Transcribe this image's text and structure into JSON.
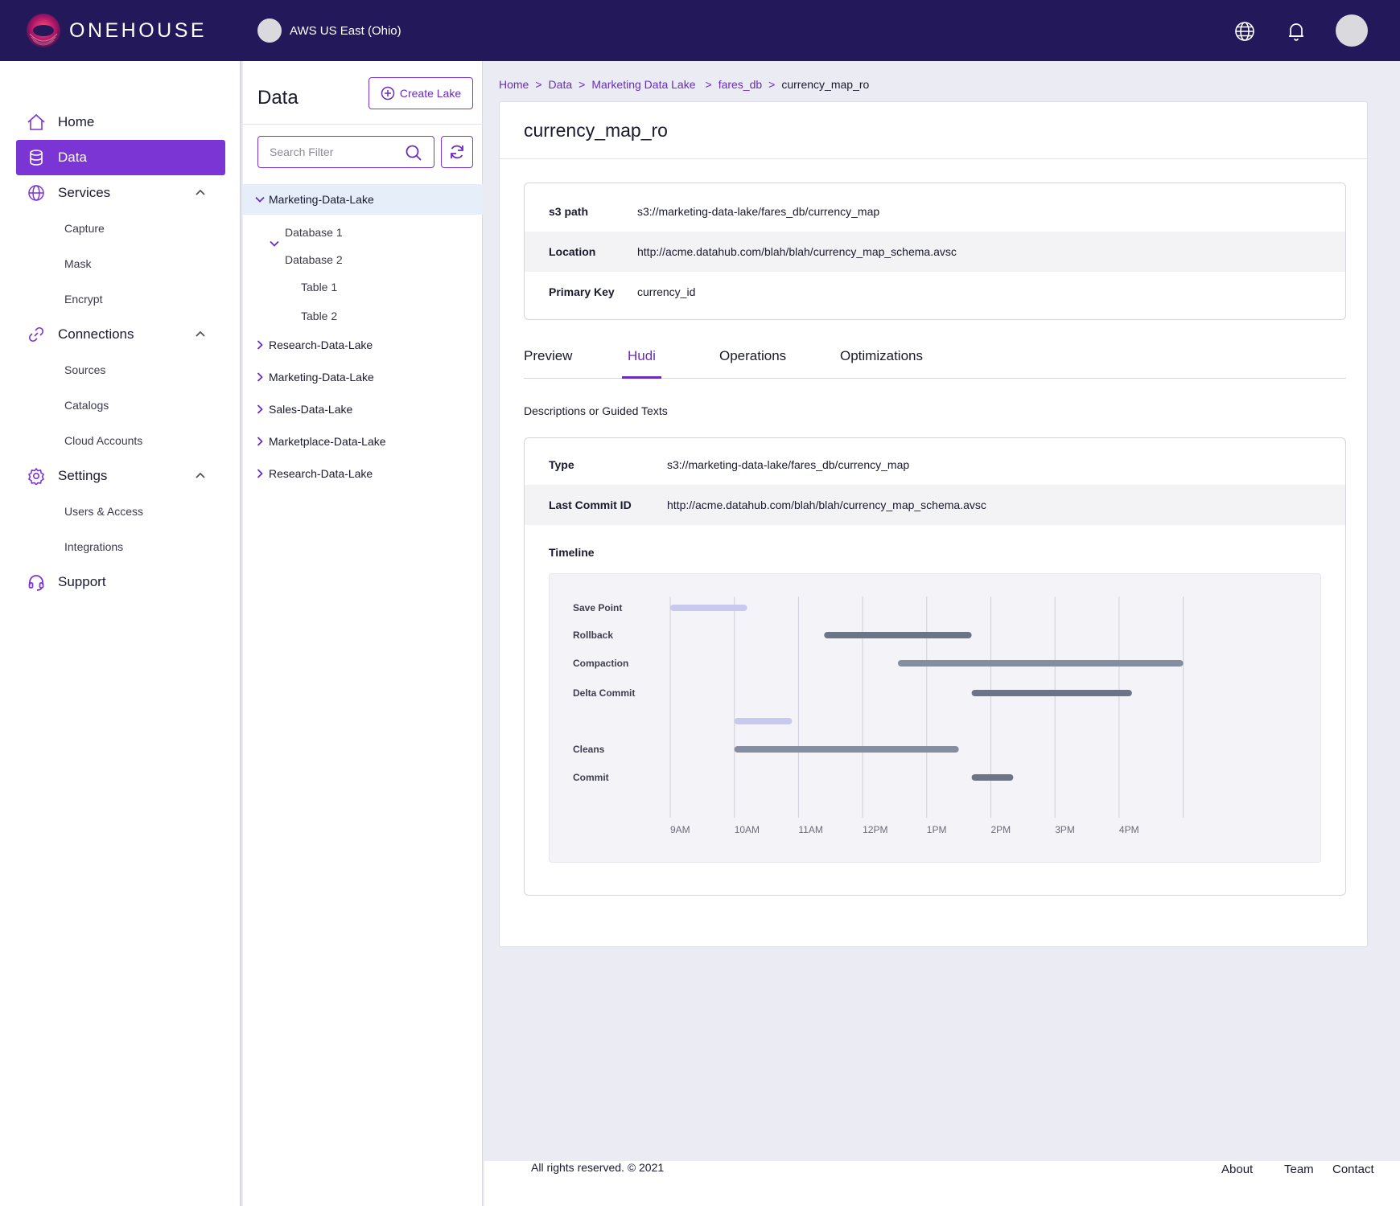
{
  "topbar": {
    "brand": "ONEHOUSE",
    "region": "AWS US East (Ohio)",
    "icons": [
      "globe-icon",
      "bell-icon"
    ]
  },
  "sidebar": {
    "home": "Home",
    "data": "Data",
    "services": "Services",
    "services_items": [
      "Capture",
      "Mask",
      "Encrypt"
    ],
    "connections": "Connections",
    "connections_items": [
      "Sources",
      "Catalogs",
      "Cloud Accounts"
    ],
    "settings": "Settings",
    "settings_items": [
      "Users & Access",
      "Integrations"
    ],
    "support": "Support"
  },
  "tree": {
    "title": "Data",
    "create_label": "Create Lake",
    "search_placeholder": "Search Filter",
    "lakes": [
      "Marketing-Data-Lake",
      "Research-Data-Lake",
      "Marketing-Data-Lake",
      "Sales-Data-Lake",
      "Marketplace-Data-Lake",
      "Research-Data-Lake"
    ],
    "databases": [
      "Database 1",
      "Database 2"
    ],
    "tables": [
      "Table 1",
      "Table 2"
    ]
  },
  "breadcrumb": {
    "items": [
      "Home",
      "Data",
      "Marketing Data Lake",
      "fares_db"
    ],
    "separator": ">",
    "current": "currency_map_ro"
  },
  "detail": {
    "title": "currency_map_ro",
    "props": [
      {
        "key": "s3 path",
        "value": "s3://marketing-data-lake/fares_db/currency_map"
      },
      {
        "key": "Location",
        "value": "http://acme.datahub.com/blah/blah/currency_map_schema.avsc"
      },
      {
        "key": "Primary Key",
        "value": "currency_id"
      }
    ],
    "tabs": [
      "Preview",
      "Hudi",
      "Operations",
      "Optimizations"
    ],
    "active_tab": "Hudi",
    "description": "Descriptions or Guided Texts",
    "hudi": [
      {
        "key": "Type",
        "value": "s3://marketing-data-lake/fares_db/currency_map"
      },
      {
        "key": "Last Commit ID",
        "value": "http://acme.datahub.com/blah/blah/currency_map_schema.avsc"
      }
    ],
    "timeline_label": "Timeline"
  },
  "chart_data": {
    "type": "gantt",
    "x_ticks": [
      "9AM",
      "10AM",
      "11AM",
      "12PM",
      "1PM",
      "2PM",
      "3PM",
      "4PM"
    ],
    "x_unit": "hours (9 = 9AM)",
    "rows": [
      {
        "label": "Save Point",
        "start": 9.0,
        "end": 10.2,
        "style": "light"
      },
      {
        "label": "Rollback",
        "start": 11.4,
        "end": 13.7,
        "style": "dark"
      },
      {
        "label": "Compaction",
        "start": 12.55,
        "end": 17.0,
        "style": "medium"
      },
      {
        "label": "Delta Commit",
        "start": 13.7,
        "end": 16.2,
        "style": "dark"
      },
      {
        "label": "",
        "start": 10.0,
        "end": 10.9,
        "style": "light"
      },
      {
        "label": "Cleans",
        "start": 10.0,
        "end": 13.5,
        "style": "medium"
      },
      {
        "label": "Commit",
        "start": 13.7,
        "end": 14.35,
        "style": "dark"
      }
    ],
    "colors": {
      "light": "#c8c9ef",
      "medium": "#858da0",
      "dark": "#6c7487",
      "grid": "#cfcfd8"
    }
  },
  "footer": {
    "copyright": "All rights reserved. © 2021",
    "links": [
      "About",
      "Team",
      "Contact"
    ]
  }
}
